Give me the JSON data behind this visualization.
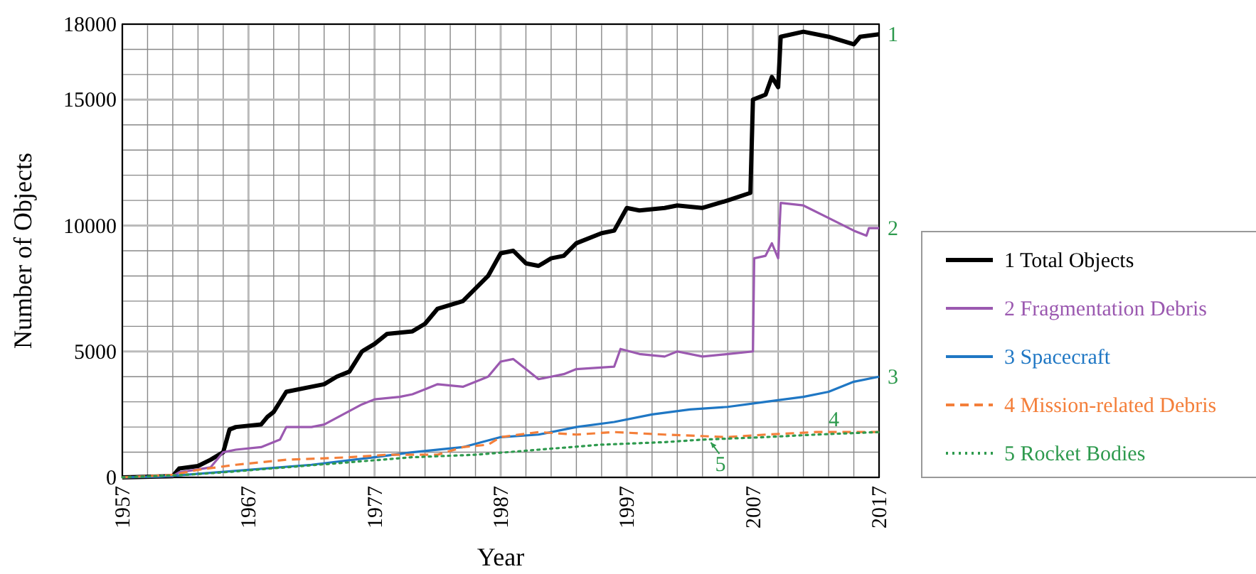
{
  "chart_data": {
    "type": "line",
    "xlabel": "Year",
    "ylabel": "Number of Objects",
    "xlim": [
      1957,
      2017
    ],
    "ylim": [
      0,
      18000
    ],
    "xticks": [
      1957,
      {
        "value": 1959,
        "label": null
      },
      {
        "value": 1961,
        "label": null
      },
      {
        "value": 1963,
        "label": null
      },
      {
        "value": 1965,
        "label": null
      },
      1967,
      {
        "value": 1969,
        "label": null
      },
      {
        "value": 1971,
        "label": null
      },
      {
        "value": 1973,
        "label": null
      },
      {
        "value": 1975,
        "label": null
      },
      1977,
      {
        "value": 1979,
        "label": null
      },
      {
        "value": 1981,
        "label": null
      },
      {
        "value": 1983,
        "label": null
      },
      {
        "value": 1985,
        "label": null
      },
      1987,
      {
        "value": 1989,
        "label": null
      },
      {
        "value": 1991,
        "label": null
      },
      {
        "value": 1993,
        "label": null
      },
      {
        "value": 1995,
        "label": null
      },
      1997,
      {
        "value": 1999,
        "label": null
      },
      {
        "value": 2001,
        "label": null
      },
      {
        "value": 2003,
        "label": null
      },
      {
        "value": 2005,
        "label": null
      },
      2007,
      {
        "value": 2009,
        "label": null
      },
      {
        "value": 2011,
        "label": null
      },
      {
        "value": 2013,
        "label": null
      },
      {
        "value": 2015,
        "label": null
      },
      2017
    ],
    "yticks": [
      0,
      {
        "value": 1000,
        "label": null
      },
      {
        "value": 2000,
        "label": null
      },
      {
        "value": 3000,
        "label": null
      },
      {
        "value": 4000,
        "label": null
      },
      5000,
      {
        "value": 6000,
        "label": null
      },
      {
        "value": 7000,
        "label": null
      },
      {
        "value": 8000,
        "label": null
      },
      {
        "value": 9000,
        "label": null
      },
      10000,
      {
        "value": 11000,
        "label": null
      },
      {
        "value": 12000,
        "label": null
      },
      {
        "value": 13000,
        "label": null
      },
      {
        "value": 14000,
        "label": null
      },
      15000,
      {
        "value": 16000,
        "label": null
      },
      {
        "value": 17000,
        "label": null
      },
      18000
    ],
    "grid": true,
    "legend": "right",
    "line_style": "solid",
    "series": [
      {
        "name": "1 Total Objects",
        "color": "#000000",
        "x": [
          1957,
          1961,
          1961.5,
          1963,
          1964,
          1965,
          1965.5,
          1966,
          1968,
          1968.5,
          1969,
          1970,
          1972,
          1973,
          1974,
          1975,
          1976,
          1977,
          1978,
          1980,
          1981,
          1982,
          1984,
          1985,
          1986,
          1987,
          1988,
          1989,
          1990,
          1991,
          1992,
          1993,
          1995,
          1996,
          1997,
          1998,
          2000,
          2001,
          2003,
          2005,
          2006.8,
          2007,
          2008,
          2008.5,
          2009,
          2009.2,
          2011,
          2013,
          2015,
          2015.5,
          2017
        ],
        "values": [
          0,
          50,
          350,
          450,
          700,
          1000,
          1900,
          2000,
          2100,
          2400,
          2600,
          3400,
          3600,
          3700,
          4000,
          4200,
          5000,
          5300,
          5700,
          5800,
          6100,
          6700,
          7000,
          7500,
          8000,
          8900,
          9000,
          8500,
          8400,
          8700,
          8800,
          9300,
          9700,
          9800,
          10700,
          10600,
          10700,
          10800,
          10700,
          11000,
          11300,
          15000,
          15200,
          15900,
          15500,
          17500,
          17700,
          17500,
          17200,
          17500,
          17600
        ]
      },
      {
        "name": "2 Fragmentation Debris",
        "color": "#9b59b0",
        "x": [
          1957,
          1961,
          1961.5,
          1964,
          1965,
          1966,
          1968,
          1969.5,
          1970,
          1972,
          1973,
          1976,
          1977,
          1979,
          1980,
          1981,
          1982,
          1984,
          1986,
          1987,
          1988,
          1989,
          1990,
          1991,
          1992,
          1993,
          1996,
          1996.5,
          1998,
          2000,
          2001,
          2003,
          2005,
          2007,
          2007.1,
          2008,
          2008.5,
          2009,
          2009.2,
          2011,
          2013,
          2015,
          2016,
          2016.2,
          2017
        ],
        "values": [
          0,
          50,
          200,
          400,
          1000,
          1100,
          1200,
          1500,
          2000,
          2000,
          2100,
          2900,
          3100,
          3200,
          3300,
          3500,
          3700,
          3600,
          4000,
          4600,
          4700,
          4300,
          3900,
          4000,
          4100,
          4300,
          4400,
          5100,
          4900,
          4800,
          5000,
          4800,
          4900,
          5000,
          8700,
          8800,
          9300,
          8700,
          10900,
          10800,
          10300,
          9800,
          9600,
          9900,
          9900
        ]
      },
      {
        "name": "3 Spacecraft",
        "color": "#1f77c4",
        "x": [
          1957,
          1960,
          1962,
          1967,
          1972,
          1977,
          1980,
          1984,
          1987,
          1990,
          1993,
          1996,
          1999,
          2002,
          2005,
          2008,
          2011,
          2013,
          2015,
          2017
        ],
        "values": [
          0,
          30,
          100,
          300,
          500,
          800,
          1000,
          1200,
          1600,
          1700,
          2000,
          2200,
          2500,
          2700,
          2800,
          3000,
          3200,
          3400,
          3800,
          4000
        ]
      },
      {
        "name": "4 Mission-related Debris",
        "color": "#f47f3a",
        "line_style": "dashed",
        "x": [
          1957,
          1961,
          1963,
          1966,
          1970,
          1975,
          1978,
          1982,
          1984,
          1986,
          1987,
          1990,
          1993,
          1996,
          2000,
          2005,
          2008,
          2012,
          2017
        ],
        "values": [
          0,
          100,
          300,
          500,
          700,
          800,
          900,
          900,
          1200,
          1300,
          1600,
          1800,
          1700,
          1800,
          1700,
          1600,
          1700,
          1800,
          1800
        ]
      },
      {
        "name": "5 Rocket Bodies",
        "color": "#2e9a4e",
        "line_style": "dotted",
        "x": [
          1957,
          1962,
          1965,
          1970,
          1975,
          1980,
          1985,
          1990,
          1995,
          2000,
          2003,
          2008,
          2012,
          2017
        ],
        "values": [
          0,
          100,
          200,
          400,
          600,
          800,
          900,
          1100,
          1300,
          1400,
          1500,
          1600,
          1700,
          1800
        ]
      }
    ],
    "annotations": [
      {
        "text": "1",
        "x": 2017,
        "y": 17600
      },
      {
        "text": "2",
        "x": 2017,
        "y": 9900
      },
      {
        "text": "3",
        "x": 2017,
        "y": 4000
      },
      {
        "text": "4",
        "x": 2013,
        "y": 1800
      },
      {
        "text": "5",
        "x": 2004,
        "y": 1500
      }
    ]
  }
}
